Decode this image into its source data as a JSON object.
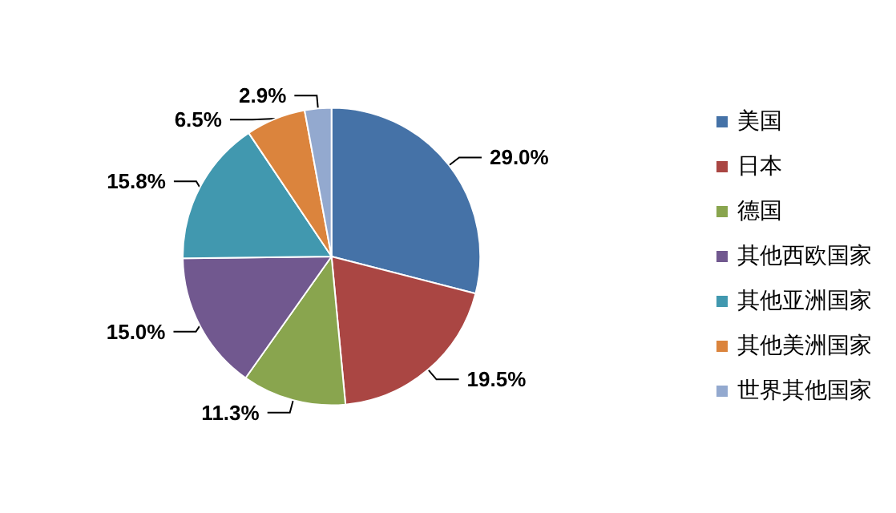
{
  "chart_data": {
    "type": "pie",
    "categories": [
      "美国",
      "日本",
      "德国",
      "其他西欧国家",
      "其他亚洲国家",
      "其他美洲国家",
      "世界其他国家"
    ],
    "values": [
      29.0,
      19.5,
      11.3,
      15.0,
      15.8,
      6.5,
      2.9
    ],
    "colors": [
      "#4572a7",
      "#aa4643",
      "#89a54e",
      "#71588f",
      "#4198af",
      "#db843d",
      "#93a9cf"
    ],
    "value_labels": [
      "29.0%",
      "19.5%",
      "11.3%",
      "15.0%",
      "15.8%",
      "6.5%",
      "2.9%"
    ],
    "legend": "right"
  }
}
